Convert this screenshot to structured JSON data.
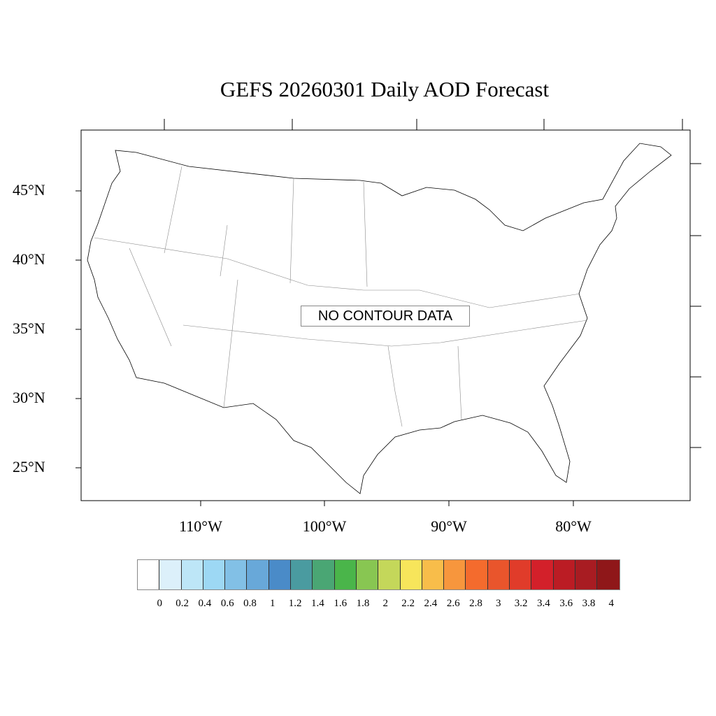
{
  "title": "GEFS 20260301 Daily AOD Forecast",
  "message": "NO CONTOUR DATA",
  "lat_labels": [
    "45°N",
    "40°N",
    "35°N",
    "30°N",
    "25°N"
  ],
  "lon_labels": [
    "110°W",
    "100°W",
    "90°W",
    "80°W"
  ],
  "colorbar": {
    "labels": [
      "0",
      "0.2",
      "0.4",
      "0.6",
      "0.8",
      "1",
      "1.2",
      "1.4",
      "1.6",
      "1.8",
      "2",
      "2.2",
      "2.4",
      "2.6",
      "2.8",
      "3",
      "3.2",
      "3.4",
      "3.6",
      "3.8",
      "4"
    ],
    "colors": [
      "#ffffff",
      "#dcf0fa",
      "#bde6f7",
      "#9dd8f4",
      "#82c0e6",
      "#68a8d9",
      "#4a8bc8",
      "#4a9ba0",
      "#4aa674",
      "#4ab54a",
      "#88c652",
      "#c4d75a",
      "#f7e55b",
      "#f8bd4a",
      "#f7963d",
      "#f46b2d",
      "#e9552c",
      "#e03c2a",
      "#d3202a",
      "#bb1c24",
      "#a81c22",
      "#8f1719"
    ]
  }
}
